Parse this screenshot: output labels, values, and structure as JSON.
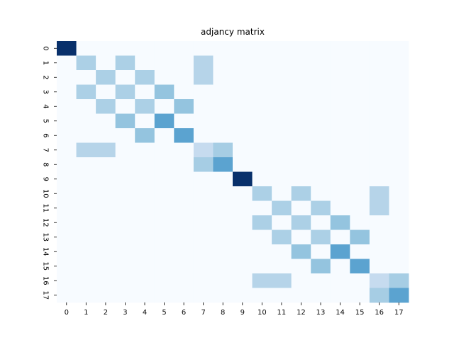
{
  "chart_data": {
    "type": "heatmap",
    "title": "adjancy matrix",
    "xlabel": "",
    "ylabel": "",
    "x_ticks": [
      "0",
      "1",
      "2",
      "3",
      "4",
      "5",
      "6",
      "7",
      "8",
      "9",
      "10",
      "11",
      "12",
      "13",
      "14",
      "15",
      "16",
      "17"
    ],
    "y_ticks": [
      "0",
      "1",
      "2",
      "3",
      "4",
      "5",
      "6",
      "7",
      "8",
      "9",
      "10",
      "11",
      "12",
      "13",
      "14",
      "15",
      "16",
      "17"
    ],
    "colormap": "Blues",
    "colorbar": false,
    "value_range": [
      0,
      1
    ],
    "matrix": [
      [
        1.0,
        0,
        0,
        0,
        0,
        0,
        0,
        0,
        0,
        0,
        0,
        0,
        0,
        0,
        0,
        0,
        0,
        0
      ],
      [
        0,
        0.33,
        0,
        0.33,
        0,
        0,
        0,
        0.3,
        0,
        0,
        0,
        0,
        0,
        0,
        0,
        0,
        0,
        0
      ],
      [
        0,
        0,
        0.33,
        0,
        0.33,
        0,
        0,
        0.3,
        0,
        0,
        0,
        0,
        0,
        0,
        0,
        0,
        0,
        0
      ],
      [
        0,
        0.33,
        0,
        0.33,
        0,
        0.4,
        0,
        0,
        0,
        0,
        0,
        0,
        0,
        0,
        0,
        0,
        0,
        0
      ],
      [
        0,
        0,
        0.33,
        0,
        0.33,
        0,
        0.4,
        0,
        0,
        0,
        0,
        0,
        0,
        0,
        0,
        0,
        0,
        0
      ],
      [
        0,
        0,
        0,
        0.4,
        0,
        0.55,
        0,
        0,
        0,
        0,
        0,
        0,
        0,
        0,
        0,
        0,
        0,
        0
      ],
      [
        0,
        0,
        0,
        0,
        0.4,
        0,
        0.55,
        0,
        0,
        0,
        0,
        0,
        0,
        0,
        0,
        0,
        0,
        0
      ],
      [
        0,
        0.3,
        0.3,
        0,
        0,
        0,
        0,
        0.25,
        0.35,
        0,
        0,
        0,
        0,
        0,
        0,
        0,
        0,
        0
      ],
      [
        0,
        0,
        0,
        0,
        0,
        0,
        0,
        0.35,
        0.55,
        0,
        0,
        0,
        0,
        0,
        0,
        0,
        0,
        0
      ],
      [
        0,
        0,
        0,
        0,
        0,
        0,
        0,
        0,
        0,
        1.0,
        0,
        0,
        0,
        0,
        0,
        0,
        0,
        0
      ],
      [
        0,
        0,
        0,
        0,
        0,
        0,
        0,
        0,
        0,
        0,
        0.33,
        0,
        0.33,
        0,
        0,
        0,
        0.3,
        0
      ],
      [
        0,
        0,
        0,
        0,
        0,
        0,
        0,
        0,
        0,
        0,
        0,
        0.33,
        0,
        0.33,
        0,
        0,
        0.3,
        0
      ],
      [
        0,
        0,
        0,
        0,
        0,
        0,
        0,
        0,
        0,
        0,
        0.33,
        0,
        0.33,
        0,
        0.4,
        0,
        0,
        0
      ],
      [
        0,
        0,
        0,
        0,
        0,
        0,
        0,
        0,
        0,
        0,
        0,
        0.33,
        0,
        0.33,
        0,
        0.4,
        0,
        0
      ],
      [
        0,
        0,
        0,
        0,
        0,
        0,
        0,
        0,
        0,
        0,
        0,
        0,
        0.4,
        0,
        0.55,
        0,
        0,
        0
      ],
      [
        0,
        0,
        0,
        0,
        0,
        0,
        0,
        0,
        0,
        0,
        0,
        0,
        0,
        0.4,
        0,
        0.55,
        0,
        0
      ],
      [
        0,
        0,
        0,
        0,
        0,
        0,
        0,
        0,
        0,
        0,
        0.3,
        0.3,
        0,
        0,
        0,
        0,
        0.25,
        0.35
      ],
      [
        0,
        0,
        0,
        0,
        0,
        0,
        0,
        0,
        0,
        0,
        0,
        0,
        0,
        0,
        0,
        0,
        0.35,
        0.55
      ]
    ]
  }
}
